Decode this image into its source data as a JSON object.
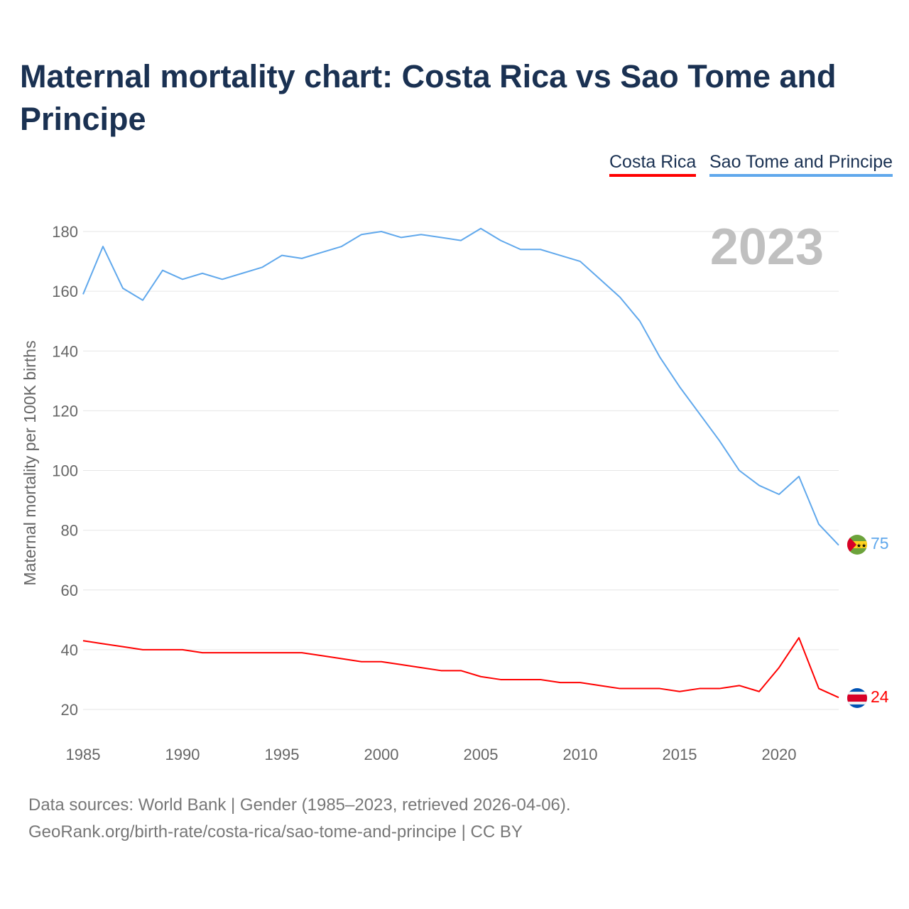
{
  "title": "Maternal mortality chart: Costa Rica vs Sao Tome and Principe",
  "footer": {
    "line1": "Data sources: World Bank | Gender (1985–2023, retrieved 2026-04-06).",
    "line2": "GeoRank.org/birth-rate/costa-rica/sao-tome-and-principe | CC BY"
  },
  "chart_data": {
    "type": "line",
    "title": "Maternal mortality chart: Costa Rica vs Sao Tome and Principe",
    "ylabel": "Maternal mortality per 100K births",
    "xlabel": "",
    "year_watermark": "2023",
    "ylim": [
      10,
      190
    ],
    "xlim": [
      1985,
      2023
    ],
    "yticks": [
      20,
      40,
      60,
      80,
      100,
      120,
      140,
      160,
      180
    ],
    "xticks": [
      1985,
      1990,
      1995,
      2000,
      2005,
      2010,
      2015,
      2020
    ],
    "grid": true,
    "legend_position": "top-right",
    "x": [
      1985,
      1986,
      1987,
      1988,
      1989,
      1990,
      1991,
      1992,
      1993,
      1994,
      1995,
      1996,
      1997,
      1998,
      1999,
      2000,
      2001,
      2002,
      2003,
      2004,
      2005,
      2006,
      2007,
      2008,
      2009,
      2010,
      2011,
      2012,
      2013,
      2014,
      2015,
      2016,
      2017,
      2018,
      2019,
      2020,
      2021,
      2022,
      2023
    ],
    "series": [
      {
        "name": "Costa Rica",
        "color": "#ff0000",
        "end_label": "24",
        "values": [
          43,
          42,
          41,
          40,
          40,
          40,
          39,
          39,
          39,
          39,
          39,
          39,
          38,
          37,
          36,
          36,
          35,
          34,
          33,
          33,
          31,
          30,
          30,
          30,
          29,
          29,
          28,
          27,
          27,
          27,
          26,
          27,
          27,
          28,
          26,
          34,
          44,
          27,
          24
        ]
      },
      {
        "name": "Sao Tome and Principe",
        "color": "#60a8ec",
        "end_label": "75",
        "values": [
          159,
          175,
          161,
          157,
          167,
          164,
          166,
          164,
          166,
          168,
          172,
          171,
          173,
          175,
          179,
          180,
          178,
          179,
          178,
          177,
          181,
          177,
          174,
          174,
          172,
          170,
          164,
          158,
          150,
          138,
          128,
          119,
          110,
          100,
          95,
          92,
          98,
          82,
          75
        ]
      }
    ]
  }
}
